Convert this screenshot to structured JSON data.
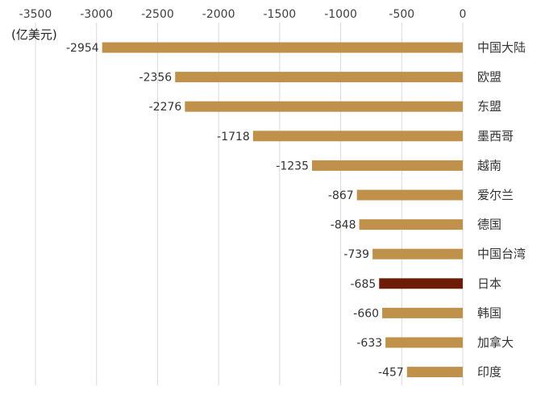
{
  "chart_data": {
    "type": "bar",
    "orientation": "horizontal",
    "unit_label": "(亿美元)",
    "categories": [
      "中国大陆",
      "欧盟",
      "东盟",
      "墨西哥",
      "越南",
      "爱尔兰",
      "德国",
      "中国台湾",
      "日本",
      "韩国",
      "加拿大",
      "印度"
    ],
    "values": [
      -2954,
      -2356,
      -2276,
      -1718,
      -1235,
      -867,
      -848,
      -739,
      -685,
      -660,
      -633,
      -457
    ],
    "data_labels": [
      "-2954",
      "-2356",
      "-2276",
      "-1718",
      "-1235",
      "-867",
      "-848",
      "-739",
      "-685",
      "-660",
      "-633",
      "-457"
    ],
    "highlight_category": "日本",
    "xlim": [
      -3500,
      0
    ],
    "x_ticks": [
      -3500,
      -3000,
      -2500,
      -2000,
      -1500,
      -1000,
      -500,
      0
    ],
    "x_tick_labels": [
      "-3500",
      "-3000",
      "-2500",
      "-2000",
      "-1500",
      "-1000",
      "-500",
      "0"
    ],
    "axis_position": "top",
    "grid": true,
    "colors": {
      "bar": "#C0914A",
      "highlight": "#6E1C05",
      "grid": "#D9D9D9"
    }
  }
}
